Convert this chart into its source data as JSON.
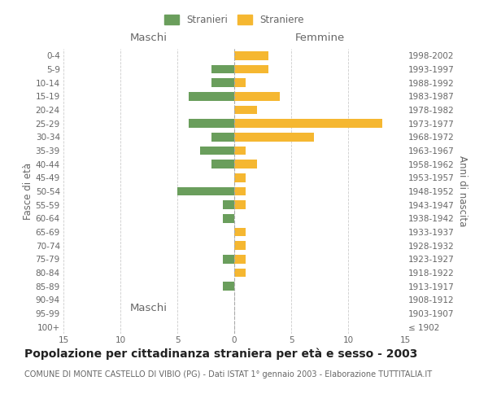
{
  "age_groups": [
    "100+",
    "95-99",
    "90-94",
    "85-89",
    "80-84",
    "75-79",
    "70-74",
    "65-69",
    "60-64",
    "55-59",
    "50-54",
    "45-49",
    "40-44",
    "35-39",
    "30-34",
    "25-29",
    "20-24",
    "15-19",
    "10-14",
    "5-9",
    "0-4"
  ],
  "birth_years": [
    "≤ 1902",
    "1903-1907",
    "1908-1912",
    "1913-1917",
    "1918-1922",
    "1923-1927",
    "1928-1932",
    "1933-1937",
    "1938-1942",
    "1943-1947",
    "1948-1952",
    "1953-1957",
    "1958-1962",
    "1963-1967",
    "1968-1972",
    "1973-1977",
    "1978-1982",
    "1983-1987",
    "1988-1992",
    "1993-1997",
    "1998-2002"
  ],
  "males": [
    0,
    0,
    0,
    1,
    0,
    1,
    0,
    0,
    1,
    1,
    5,
    0,
    2,
    3,
    2,
    4,
    0,
    4,
    2,
    2,
    0
  ],
  "females": [
    0,
    0,
    0,
    0,
    1,
    1,
    1,
    1,
    0,
    1,
    1,
    1,
    2,
    1,
    7,
    13,
    2,
    4,
    1,
    3,
    3
  ],
  "male_color": "#6a9e5c",
  "female_color": "#f5b731",
  "xlim": 15,
  "title": "Popolazione per cittadinanza straniera per età e sesso - 2003",
  "subtitle": "COMUNE DI MONTE CASTELLO DI VIBIO (PG) - Dati ISTAT 1° gennaio 2003 - Elaborazione TUTTITALIA.IT",
  "legend_male": "Stranieri",
  "legend_female": "Straniere",
  "ylabel_left": "Fasce di età",
  "ylabel_right": "Anni di nascita",
  "header_male": "Maschi",
  "header_female": "Femmine",
  "bg_color": "#ffffff",
  "grid_color": "#cccccc",
  "text_color": "#666666",
  "title_fontsize": 10,
  "subtitle_fontsize": 7,
  "tick_fontsize": 7.5,
  "label_fontsize": 8.5
}
